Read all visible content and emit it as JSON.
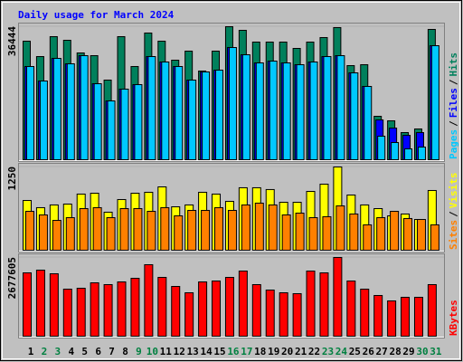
{
  "chart_data": {
    "type": "bar",
    "title": "Daily usage for March 2024",
    "separator": "/",
    "categories": [
      "1",
      "2",
      "3",
      "4",
      "5",
      "6",
      "7",
      "8",
      "9",
      "10",
      "11",
      "12",
      "13",
      "14",
      "15",
      "16",
      "17",
      "18",
      "19",
      "20",
      "21",
      "22",
      "23",
      "24",
      "25",
      "26",
      "27",
      "28",
      "29",
      "30",
      "31"
    ],
    "category_colors": [
      "#000000",
      "#008040",
      "#008040",
      "#000000",
      "#000000",
      "#000000",
      "#000000",
      "#000000",
      "#008040",
      "#008040",
      "#000000",
      "#000000",
      "#000000",
      "#000000",
      "#000000",
      "#008040",
      "#008040",
      "#000000",
      "#000000",
      "#000000",
      "#000000",
      "#000000",
      "#008040",
      "#008040",
      "#000000",
      "#000000",
      "#000000",
      "#000000",
      "#000000",
      "#008040",
      "#008040"
    ],
    "panels": [
      {
        "ylim": [
          0,
          36444
        ],
        "yticks": [
          36444
        ],
        "series": [
          {
            "name": "Hits",
            "color": "#00805C",
            "values": [
              32475,
              28261,
              33715,
              32723,
              29253,
              28509,
              21816,
              33715,
              25534,
              34707,
              32475,
              27270,
              29749,
              24295,
              29749,
              36444,
              35452,
              32228,
              32228,
              32228,
              30493,
              32228,
              33467,
              36200,
              25782,
              26030,
              11900,
              10660,
              7437,
              8429,
              35700
            ]
          },
          {
            "name": "Files",
            "color": "#0000FF",
            "values": [
              25534,
              21568,
              27765,
              26278,
              28509,
              20824,
              16114,
              19337,
              20576,
              28261,
              26774,
              25534,
              21816,
              24047,
              24543,
              30740,
              28757,
              26526,
              27022,
              26526,
              26030,
              26774,
              28261,
              28509,
              23799,
              20080,
              10908,
              8677,
              6693,
              7437,
              31236
            ]
          },
          {
            "name": "Pages",
            "color": "#00C8FF",
            "values": [
              25534,
              21568,
              27765,
              26278,
              28509,
              20824,
              16114,
              19337,
              20576,
              28261,
              26774,
              25534,
              21816,
              24047,
              24543,
              30740,
              28757,
              26526,
              27022,
              26526,
              26030,
              26774,
              28261,
              28509,
              23799,
              20080,
              6446,
              4710,
              2975,
              3471,
              31236
            ]
          }
        ]
      },
      {
        "ylim": [
          0,
          1250
        ],
        "yticks": [
          1250
        ],
        "series": [
          {
            "name": "Visits",
            "color": "#FFFF00",
            "values": [
              747,
              639,
              680,
              693,
              843,
              856,
              571,
              761,
              856,
              870,
              951,
              652,
              680,
              870,
              843,
              734,
              938,
              938,
              911,
              720,
              720,
              883,
              992,
              1250,
              829,
              680,
              625,
              516,
              544,
              462,
              897
            ]
          },
          {
            "name": "Sites",
            "color": "#FF8000",
            "values": [
              584,
              530,
              448,
              489,
              625,
              639,
              489,
              625,
              625,
              584,
              639,
              516,
              598,
              598,
              639,
              598,
              680,
              707,
              680,
              530,
              557,
              489,
              503,
              666,
              544,
              381,
              489,
              584,
              476,
              462,
              381
            ]
          }
        ]
      },
      {
        "ylim": [
          0,
          2677605
        ],
        "yticks": [
          2677605
        ],
        "series": [
          {
            "name": "KBytes",
            "color": "#FF0000",
            "values": [
              2154390,
              2246721,
              2123613,
              1600404,
              1631181,
              1815843,
              1754289,
              1846620,
              1969728,
              2431383,
              2000505,
              1692735,
              1477296,
              1846620,
              1877397,
              2000505,
              2215944,
              1754289,
              1569627,
              1477296,
              1446519,
              2215944,
              2154390,
              2677605,
              1877397,
              1600404,
              1384965,
              1200303,
              1323411,
              1323411,
              1754289
            ]
          }
        ]
      }
    ]
  }
}
